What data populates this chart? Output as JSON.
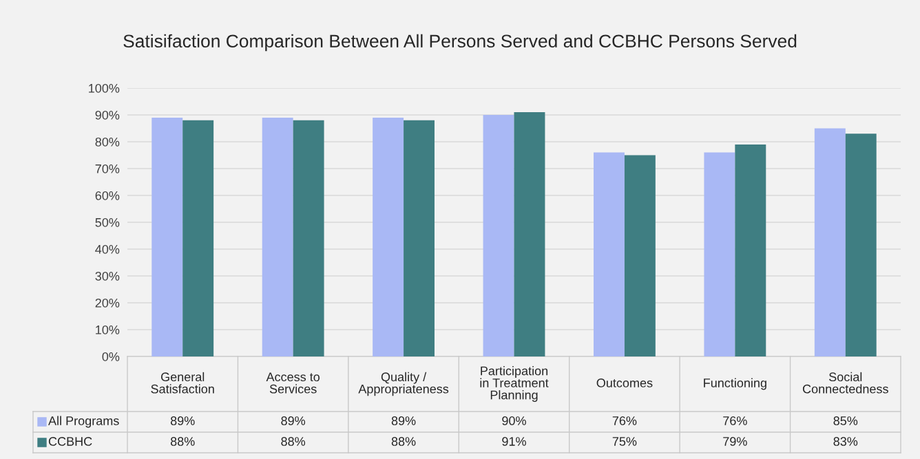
{
  "chart_data": {
    "type": "bar",
    "title": "Satisifaction Comparison Between All Persons Served and CCBHC Persons Served",
    "categories": [
      "General Satisfaction",
      "Access to Services",
      "Quality / Appropriateness",
      "Participation in Treatment Planning",
      "Outcomes",
      "Functioning",
      "Social Connectedness"
    ],
    "series": [
      {
        "name": "All Programs",
        "color": "#a9b8f5",
        "values": [
          89,
          89,
          89,
          90,
          76,
          76,
          85
        ],
        "value_labels": [
          "89%",
          "89%",
          "89%",
          "90%",
          "76%",
          "76%",
          "85%"
        ]
      },
      {
        "name": "CCBHC",
        "color": "#3f7e82",
        "values": [
          88,
          88,
          88,
          91,
          75,
          79,
          83
        ],
        "value_labels": [
          "88%",
          "88%",
          "88%",
          "91%",
          "75%",
          "79%",
          "83%"
        ]
      }
    ],
    "ylim": [
      0,
      100
    ],
    "yticks": [
      {
        "value": 0,
        "label": "0%"
      },
      {
        "value": 10,
        "label": "10%"
      },
      {
        "value": 20,
        "label": "20%"
      },
      {
        "value": 30,
        "label": "30%"
      },
      {
        "value": 40,
        "label": "40%"
      },
      {
        "value": 50,
        "label": "50%"
      },
      {
        "value": 60,
        "label": "60%"
      },
      {
        "value": 70,
        "label": "70%"
      },
      {
        "value": 80,
        "label": "80%"
      },
      {
        "value": 90,
        "label": "90%"
      },
      {
        "value": 100,
        "label": "100%"
      }
    ],
    "grid": "y",
    "legend": "bottom"
  }
}
